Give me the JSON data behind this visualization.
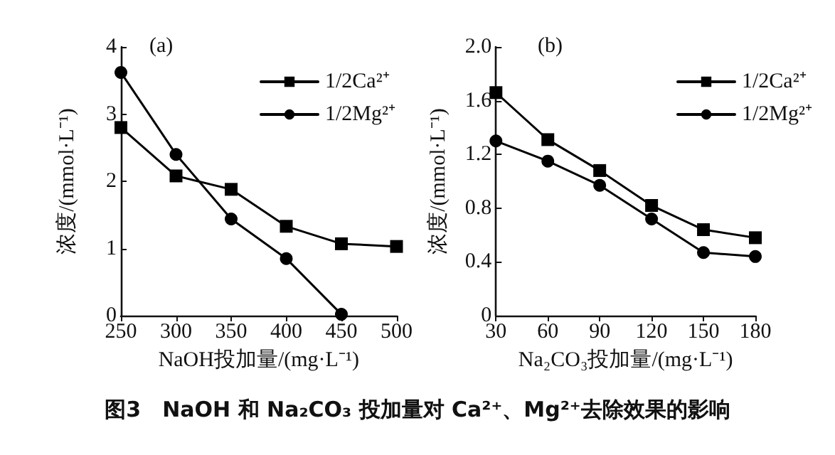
{
  "chart_data": [
    {
      "type": "line",
      "title": "(a)",
      "xlabel": "NaOH投加量/(mg·L⁻¹)",
      "ylabel": "浓度/(mmol·L⁻¹)",
      "x": [
        250,
        300,
        350,
        400,
        450,
        500
      ],
      "series": [
        {
          "name": "1/2Ca²⁺",
          "color": "#000000",
          "marker": "square",
          "values": [
            2.8,
            2.08,
            1.88,
            1.33,
            1.07,
            1.03
          ]
        },
        {
          "name": "1/2Mg²⁺",
          "color": "#000000",
          "marker": "circle",
          "values": [
            3.62,
            2.4,
            1.44,
            0.85,
            0.02,
            null
          ]
        }
      ],
      "xlim": [
        250,
        500
      ],
      "xticks": [
        250,
        300,
        350,
        400,
        450,
        500
      ],
      "ylim": [
        0,
        4
      ],
      "yticks": [
        0,
        1,
        2,
        3,
        4
      ],
      "grid": false,
      "legend": "top right",
      "line_style": "solid",
      "annotations": [
        "图3　NaOH 和 Na₂CO₃ 投加量对 Ca²⁺、Mg²⁺去除效果的影响"
      ]
    },
    {
      "type": "line",
      "title": "(b)",
      "xlabel": "Na₂CO₃投加量/(mg·L⁻¹)",
      "ylabel": "浓度/(mmol·L⁻¹)",
      "x": [
        30,
        60,
        90,
        120,
        150,
        180
      ],
      "series": [
        {
          "name": "1/2Ca²⁺",
          "color": "#000000",
          "marker": "square",
          "values": [
            1.66,
            1.31,
            1.08,
            0.82,
            0.64,
            0.58
          ]
        },
        {
          "name": "1/2Mg²⁺",
          "color": "#000000",
          "marker": "circle",
          "values": [
            1.3,
            1.15,
            0.97,
            0.72,
            0.47,
            0.44
          ]
        }
      ],
      "xlim": [
        30,
        180
      ],
      "xticks": [
        30,
        60,
        90,
        120,
        150,
        180
      ],
      "ylim": [
        0,
        2.0
      ],
      "yticks": [
        0,
        {
          "value": 0.4,
          "label": "0.4"
        },
        {
          "value": 0.8,
          "label": "0.8"
        },
        {
          "value": 1.2,
          "label": "1.2"
        },
        {
          "value": 1.6,
          "label": "1.6"
        },
        {
          "value": 2.0,
          "label": "2.0"
        }
      ],
      "grid": false,
      "legend": "top right",
      "line_style": "solid"
    }
  ]
}
